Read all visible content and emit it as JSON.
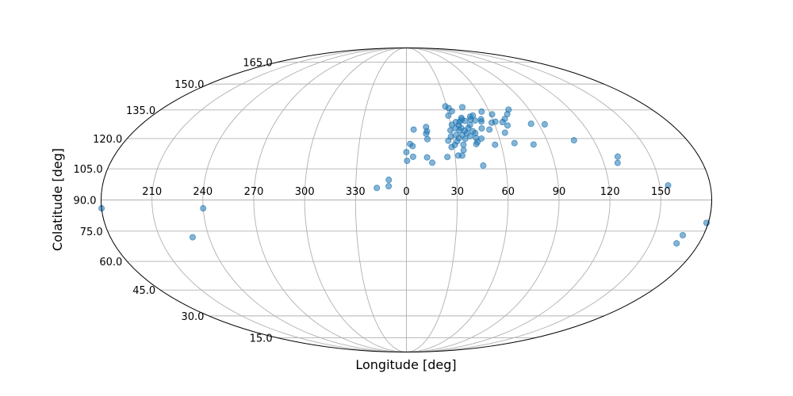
{
  "chart_data": {
    "type": "scatter",
    "projection": "mollweide",
    "xlabel": "Longitude [deg]",
    "ylabel": "Colatitude [deg]",
    "grid": true,
    "marker_color": "#1f77b4",
    "marker_alpha": 0.55,
    "x_tick_labels": [
      "210",
      "240",
      "270",
      "300",
      "330",
      "0",
      "30",
      "60",
      "90",
      "120",
      "150"
    ],
    "y_tick_labels": [
      "15.0",
      "30.0",
      "45.0",
      "60.0",
      "75.0",
      "90.0",
      "105.0",
      "120.0",
      "135.0",
      "150.0",
      "165.0"
    ],
    "points": [
      {
        "lon": 29.1,
        "colat": 137.0
      },
      {
        "lon": 31.3,
        "colat": 136.0
      },
      {
        "lon": 41.6,
        "colat": 136.5
      },
      {
        "lon": 33.0,
        "colat": 134.3
      },
      {
        "lon": 54.5,
        "colat": 134.1
      },
      {
        "lon": 74.9,
        "colat": 135.2
      },
      {
        "lon": 29.7,
        "colat": 131.9
      },
      {
        "lon": 38.5,
        "colat": 130.7
      },
      {
        "lon": 44.9,
        "colat": 131.4
      },
      {
        "lon": 47.1,
        "colat": 132.0
      },
      {
        "lon": 61.1,
        "colat": 132.6
      },
      {
        "lon": 72.0,
        "colat": 132.7
      },
      {
        "lon": 68.6,
        "colat": 130.2
      },
      {
        "lon": 38.4,
        "colat": 129.8
      },
      {
        "lon": 40.4,
        "colat": 129.1
      },
      {
        "lon": 44.7,
        "colat": 129.9
      },
      {
        "lon": 47.4,
        "colat": 129.3
      },
      {
        "lon": 51.9,
        "colat": 130.0
      },
      {
        "lon": 33.9,
        "colat": 128.5
      },
      {
        "lon": 36.6,
        "colat": 128.7
      },
      {
        "lon": 51.6,
        "colat": 128.8
      },
      {
        "lon": 58.4,
        "colat": 128.2
      },
      {
        "lon": 61.2,
        "colat": 128.7
      },
      {
        "lon": 66.0,
        "colat": 128.5
      },
      {
        "lon": 30.8,
        "colat": 127.1
      },
      {
        "lon": 35.4,
        "colat": 126.8
      },
      {
        "lon": 43.1,
        "colat": 127.0
      },
      {
        "lon": 68.4,
        "colat": 126.7
      },
      {
        "lon": 84.9,
        "colat": 127.6
      },
      {
        "lon": 94.0,
        "colat": 127.3
      },
      {
        "lon": 13.2,
        "colat": 125.9
      },
      {
        "lon": 4.8,
        "colat": 124.6
      },
      {
        "lon": 13.6,
        "colat": 123.7
      },
      {
        "lon": 32.8,
        "colat": 125.3
      },
      {
        "lon": 36.7,
        "colat": 125.4
      },
      {
        "lon": 41.4,
        "colat": 125.4
      },
      {
        "lon": 50.3,
        "colat": 125.2
      },
      {
        "lon": 55.2,
        "colat": 124.6
      },
      {
        "lon": 29.2,
        "colat": 124.2
      },
      {
        "lon": 35.2,
        "colat": 124.2
      },
      {
        "lon": 38.7,
        "colat": 124.0
      },
      {
        "lon": 39.6,
        "colat": 122.7
      },
      {
        "lon": 43.9,
        "colat": 123.7
      },
      {
        "lon": 45.2,
        "colat": 122.8
      },
      {
        "lon": 64.8,
        "colat": 123.0
      },
      {
        "lon": 12.9,
        "colat": 122.5
      },
      {
        "lon": 32.4,
        "colat": 121.8
      },
      {
        "lon": 36.5,
        "colat": 121.8
      },
      {
        "lon": 41.4,
        "colat": 121.2
      },
      {
        "lon": 33.9,
        "colat": 120.2
      },
      {
        "lon": 37.9,
        "colat": 119.9
      },
      {
        "lon": 45.0,
        "colat": 120.3
      },
      {
        "lon": 48.3,
        "colat": 120.0
      },
      {
        "lon": 13.5,
        "colat": 119.7
      },
      {
        "lon": 28.9,
        "colat": 121.0
      },
      {
        "lon": 26.8,
        "colat": 118.9
      },
      {
        "lon": 32.4,
        "colat": 118.6
      },
      {
        "lon": 30.6,
        "colat": 116.8
      },
      {
        "lon": 36.1,
        "colat": 116.9
      },
      {
        "lon": 44.3,
        "colat": 117.2
      },
      {
        "lon": 45.3,
        "colat": 118.3
      },
      {
        "lon": 56.1,
        "colat": 116.9
      },
      {
        "lon": 68.7,
        "colat": 117.7
      },
      {
        "lon": 80.5,
        "colat": 117.0
      },
      {
        "lon": 107.4,
        "colat": 119.1
      },
      {
        "lon": 2.3,
        "colat": 117.3
      },
      {
        "lon": 3.9,
        "colat": 116.2
      },
      {
        "lon": 28.4,
        "colat": 115.7
      },
      {
        "lon": 35.7,
        "colat": 114.2
      },
      {
        "lon": 0.0,
        "colat": 113.2
      },
      {
        "lon": 4.1,
        "colat": 110.9
      },
      {
        "lon": 12.7,
        "colat": 110.6
      },
      {
        "lon": 25.2,
        "colat": 110.8
      },
      {
        "lon": 32.0,
        "colat": 111.5
      },
      {
        "lon": 34.4,
        "colat": 111.5
      },
      {
        "lon": 0.4,
        "colat": 108.9
      },
      {
        "lon": 15.7,
        "colat": 108.0
      },
      {
        "lon": 46.5,
        "colat": 106.6
      },
      {
        "lon": 128.4,
        "colat": 107.9
      },
      {
        "lon": 130.0,
        "colat": 111.0
      },
      {
        "lon": 349.5,
        "colat": 99.7
      },
      {
        "lon": 349.5,
        "colat": 96.6
      },
      {
        "lon": 342.5,
        "colat": 95.8
      },
      {
        "lon": 155.0,
        "colat": 97.0
      },
      {
        "lon": 180.0,
        "colat": 86.0
      },
      {
        "lon": 179.0,
        "colat": 79.0
      },
      {
        "lon": 240.0,
        "colat": 86.0
      },
      {
        "lon": 230.0,
        "colat": 72.0
      },
      {
        "lon": 167.5,
        "colat": 73.0
      },
      {
        "lon": 166.2,
        "colat": 69.0
      }
    ]
  }
}
